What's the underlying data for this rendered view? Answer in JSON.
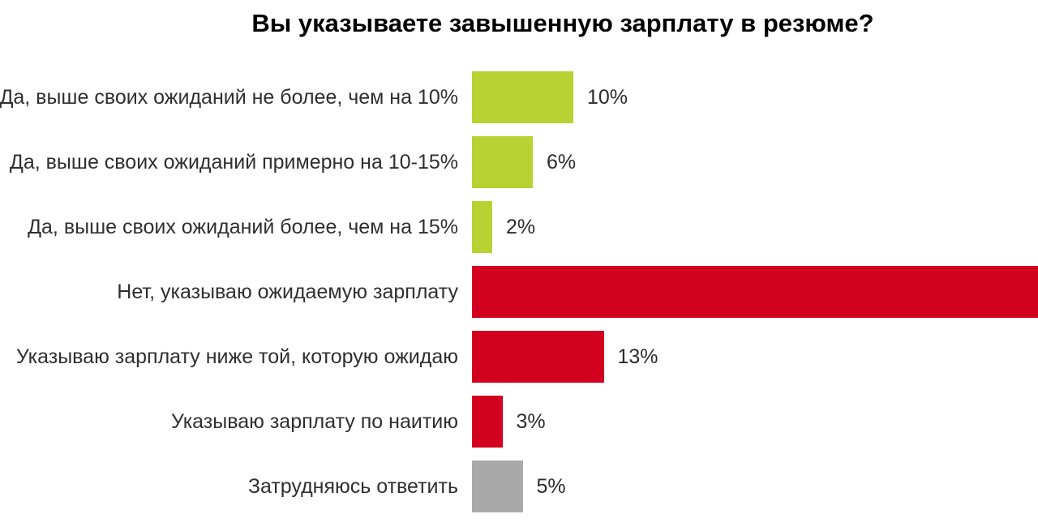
{
  "title": "Вы указываете завышенную зарплату в резюме?",
  "colors": {
    "yes_green": "#B8D233",
    "no_red": "#D1011F",
    "undecided_gray": "#A9A9A9",
    "background": "#FFFFFF",
    "text": "#2F2F2F",
    "title_text": "#000000"
  },
  "chart_data": {
    "type": "bar",
    "orientation": "horizontal",
    "title": "Вы указываете завышенную зарплату в резюме?",
    "categories": [
      "Да, выше своих ожиданий не более, чем на 10%",
      "Да, выше своих ожиданий примерно на 10-15%",
      "Да, выше своих ожиданий более, чем на 15%",
      "Нет, указываю ожидаемую зарплату",
      "Указываю зарплату ниже той, которую ожидаю",
      "Указываю зарплату по наитию",
      "Затрудняюсь ответить"
    ],
    "values": [
      10,
      6,
      2,
      61,
      13,
      3,
      5
    ],
    "value_labels": [
      "10%",
      "6%",
      "2%",
      "",
      "13%",
      "3%",
      "5%"
    ],
    "bar_colors": [
      "#B8D233",
      "#B8D233",
      "#B8D233",
      "#D1011F",
      "#D1011F",
      "#D1011F",
      "#A9A9A9"
    ],
    "xlabel": "",
    "ylabel": "",
    "axis_visible": false,
    "grid": false,
    "legend": "none",
    "notes": "Fourth bar (Нет, указываю ожидаемую зарплату) runs past the right edge of the frame and its percentage label is cut off; value estimated as remainder to 100%. Left side of category labels 1, 2 and 5 is clipped by the frame edge."
  }
}
